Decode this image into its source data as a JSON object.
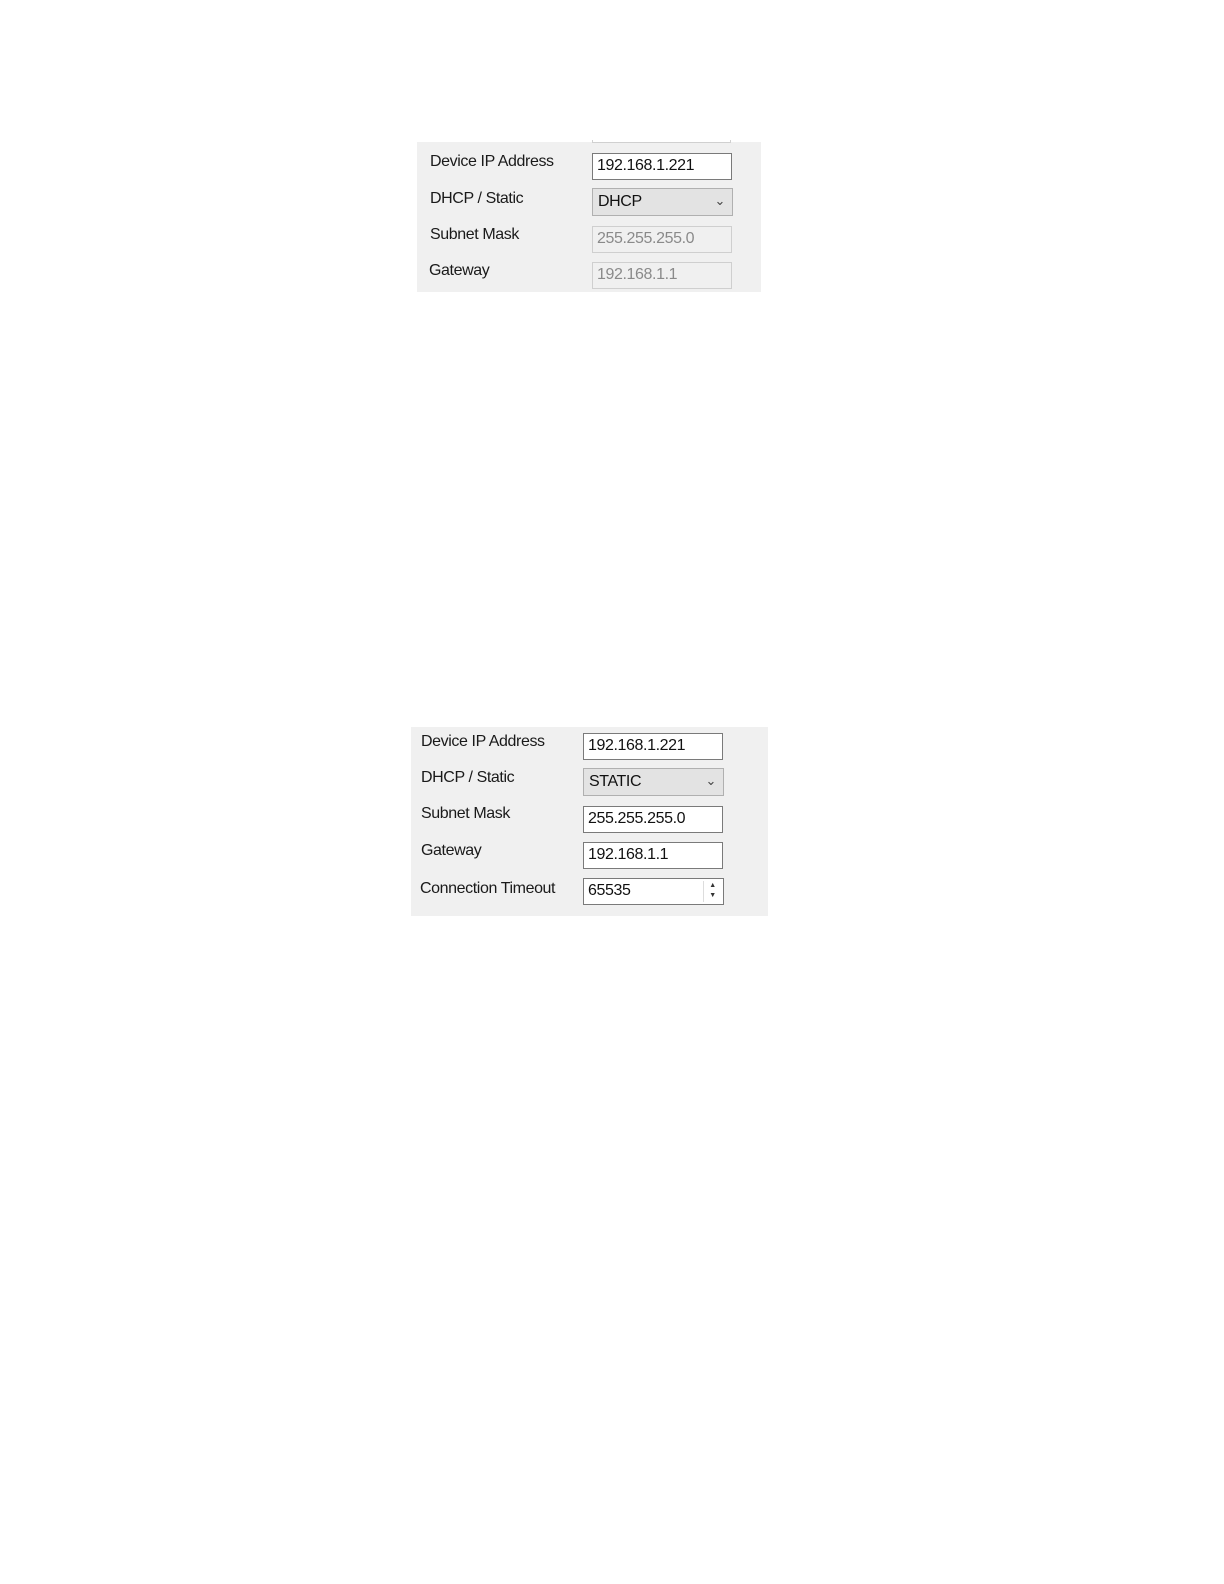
{
  "dhcp_panel": {
    "device_ip_label": "Device IP Address",
    "device_ip_value": "192.168.1.221",
    "mode_label": "DHCP / Static",
    "mode_value": "DHCP",
    "subnet_label": "Subnet Mask",
    "subnet_value": "255.255.255.0",
    "gateway_label": "Gateway",
    "gateway_value": "192.168.1.1"
  },
  "static_panel": {
    "device_ip_label": "Device IP Address",
    "device_ip_value": "192.168.1.221",
    "mode_label": "DHCP / Static",
    "mode_value": "STATIC",
    "subnet_label": "Subnet Mask",
    "subnet_value": "255.255.255.0",
    "gateway_label": "Gateway",
    "gateway_value": "192.168.1.1",
    "timeout_label": "Connection Timeout",
    "timeout_value": "65535"
  },
  "icons": {
    "dropdown": "chevron-down-icon",
    "spinner": "spin-up-down-icon"
  }
}
